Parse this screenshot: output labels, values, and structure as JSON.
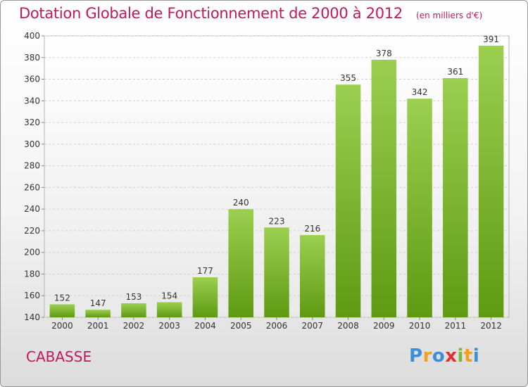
{
  "title": "Dotation Globale de Fonctionnement de 2000 à 2012",
  "subtitle": "(en milliers d'€)",
  "commune": "CABASSE",
  "logo": {
    "letters": [
      "P",
      "r",
      "o",
      "x",
      "i",
      "t",
      "i"
    ],
    "colors": [
      "#3a8fd6",
      "#f0a020",
      "#3a8fd6",
      "#e03030",
      "#7ab83a",
      "#f0a020",
      "#3a8fd6"
    ]
  },
  "colors": {
    "title": "#c2185b",
    "bar_top": "#9ccf50",
    "bar_bottom": "#5e9a12"
  },
  "chart_data": {
    "type": "bar",
    "categories": [
      "2000",
      "2001",
      "2002",
      "2003",
      "2004",
      "2005",
      "2006",
      "2007",
      "2008",
      "2009",
      "2010",
      "2011",
      "2012"
    ],
    "values": [
      152,
      147,
      153,
      154,
      177,
      240,
      223,
      216,
      355,
      378,
      342,
      361,
      391
    ],
    "ylim": [
      140,
      400
    ],
    "yticks": [
      140,
      160,
      180,
      200,
      220,
      240,
      260,
      280,
      300,
      320,
      340,
      360,
      380,
      400
    ],
    "grid": true
  }
}
